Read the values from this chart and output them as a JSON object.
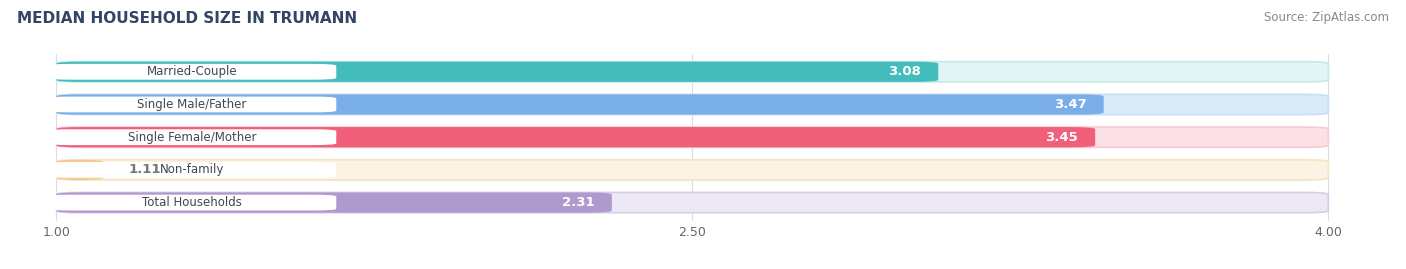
{
  "title": "MEDIAN HOUSEHOLD SIZE IN TRUMANN",
  "source": "Source: ZipAtlas.com",
  "categories": [
    "Married-Couple",
    "Single Male/Father",
    "Single Female/Mother",
    "Non-family",
    "Total Households"
  ],
  "values": [
    3.08,
    3.47,
    3.45,
    1.11,
    2.31
  ],
  "bar_colors": [
    "#45bcbc",
    "#7aaee8",
    "#f0607a",
    "#f5c98a",
    "#b09acd"
  ],
  "bar_bg_colors": [
    "#e2f5f5",
    "#daeaf8",
    "#fde0e6",
    "#fdf3e4",
    "#ede8f6"
  ],
  "bar_border_colors": [
    "#c5e8e8",
    "#c8dff5",
    "#f8c8d4",
    "#f5e4c0",
    "#d8ccea"
  ],
  "xticks": [
    1.0,
    2.5,
    4.0
  ],
  "xmin": 1.0,
  "xmax": 4.0,
  "value_color_inside": "#ffffff",
  "value_color_outside": "#777777",
  "label_text_color": "#444455",
  "title_color": "#334466",
  "source_color": "#888888",
  "background_color": "#ffffff"
}
